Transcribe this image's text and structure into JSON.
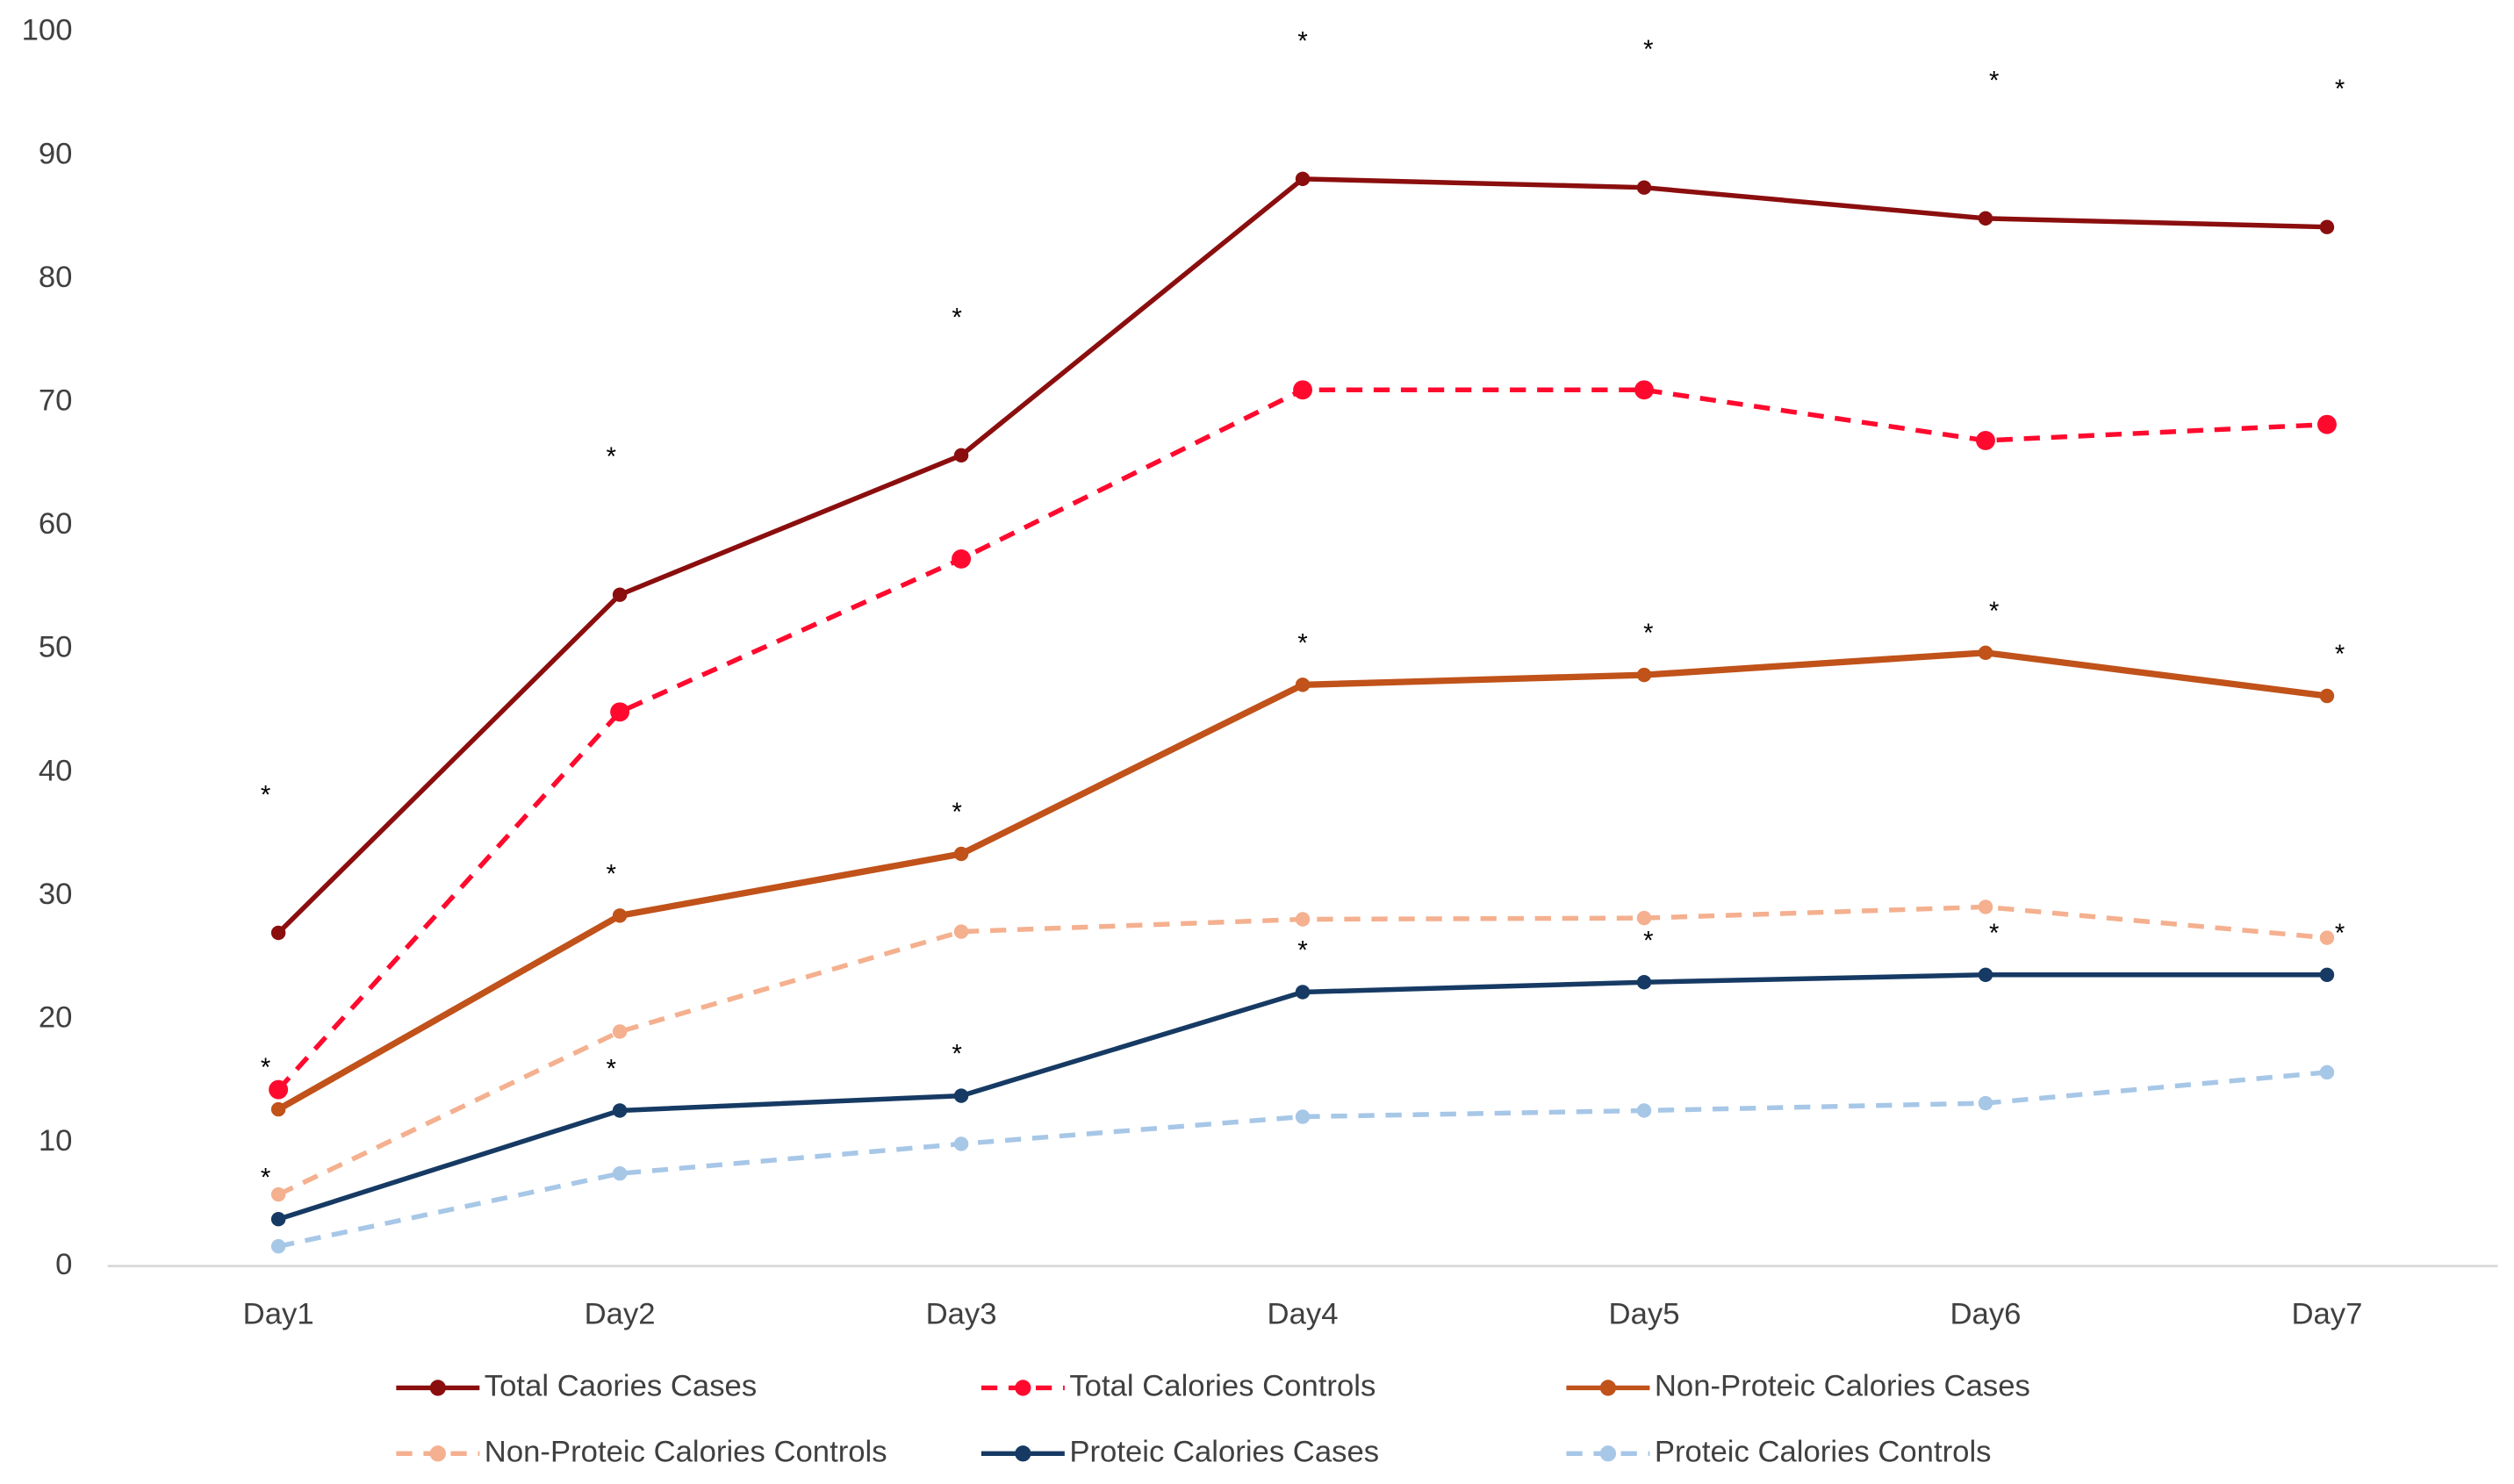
{
  "chart_data": {
    "type": "line",
    "categories": [
      "Day1",
      "Day2",
      "Day3",
      "Day4",
      "Day5",
      "Day6",
      "Day7"
    ],
    "ylim": [
      0,
      100
    ],
    "yticks": [
      0,
      10,
      20,
      30,
      40,
      50,
      60,
      70,
      80,
      90,
      100
    ],
    "grid": false,
    "legend": "bottom",
    "series": [
      {
        "name": "Total Caories Cases",
        "color": "#8b0e0e",
        "line_style": "solid",
        "values": [
          27,
          54.4,
          65.7,
          88.1,
          87.4,
          84.9,
          84.2
        ],
        "annotations": [
          "*",
          "*",
          "*",
          "*",
          "*",
          "*",
          "*"
        ]
      },
      {
        "name": "Total Calories Controls",
        "color": "#ff0a2e",
        "line_style": "dashed",
        "values": [
          14.3,
          44.9,
          57.3,
          71.0,
          71.0,
          66.9,
          68.2
        ]
      },
      {
        "name": "Non-Proteic Calories Cases",
        "color": "#c0521a",
        "line_style": "solid",
        "values": [
          12.7,
          28.4,
          33.4,
          47.1,
          47.9,
          49.7,
          46.2
        ],
        "annotations": [
          "*",
          "*",
          "*",
          "*",
          "*",
          "*",
          "*"
        ]
      },
      {
        "name": "Non-Proteic Calories Controls",
        "color": "#f4b08f",
        "line_style": "dashed",
        "values": [
          5.8,
          19.0,
          27.1,
          28.1,
          28.2,
          29.1,
          26.6
        ]
      },
      {
        "name": "Proteic Calories Cases",
        "color": "#163a63",
        "line_style": "solid",
        "values": [
          3.8,
          12.6,
          13.8,
          22.2,
          23.0,
          23.6,
          23.6
        ],
        "annotations": [
          "*",
          "*",
          "*",
          "*",
          "*",
          "*",
          "*"
        ]
      },
      {
        "name": "Proteic Calories Controls",
        "color": "#a7c7e7",
        "line_style": "dashed",
        "values": [
          1.6,
          7.5,
          9.9,
          12.1,
          12.6,
          13.2,
          15.7
        ]
      }
    ]
  }
}
